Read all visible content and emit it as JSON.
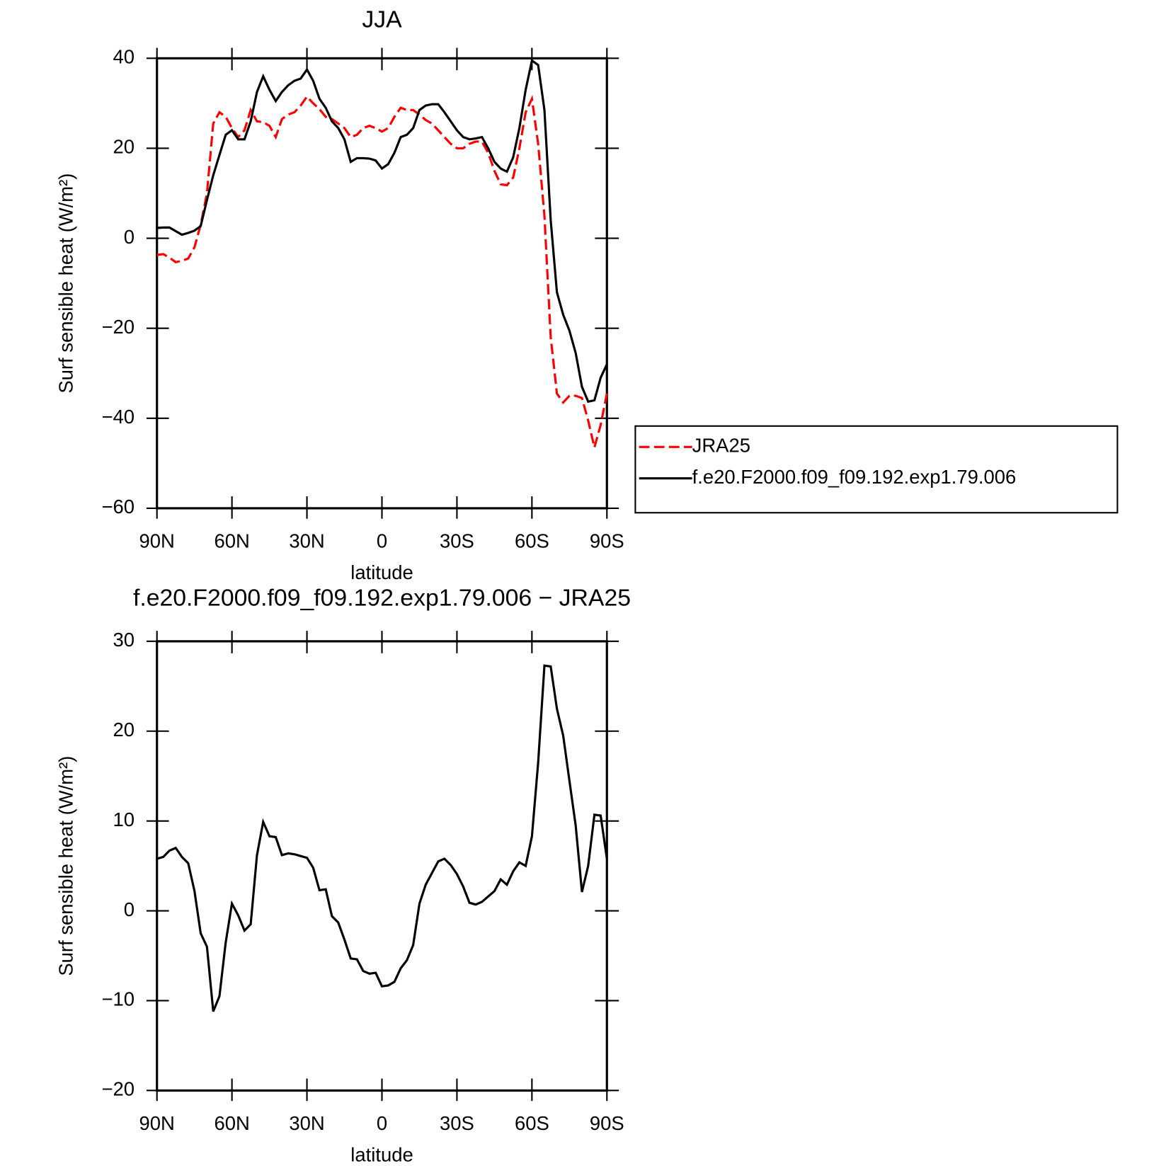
{
  "chart_data": [
    {
      "type": "line",
      "title": "JJA",
      "xlabel": "latitude",
      "ylabel": "Surf sensible heat (W/m²)",
      "x": [
        90,
        87.5,
        85,
        82.5,
        80,
        77.5,
        75,
        72.5,
        70,
        67.5,
        65,
        62.5,
        60,
        57.5,
        55,
        52.5,
        50,
        47.5,
        45,
        42.5,
        40,
        37.5,
        35,
        32.5,
        30,
        27.5,
        25,
        22.5,
        20,
        17.5,
        15,
        12.5,
        10,
        7.5,
        5,
        2.5,
        0,
        -2.5,
        -5,
        -7.5,
        -10,
        -12.5,
        -15,
        -17.5,
        -20,
        -22.5,
        -25,
        -27.5,
        -30,
        -32.5,
        -35,
        -37.5,
        -40,
        -42.5,
        -45,
        -47.5,
        -50,
        -52.5,
        -55,
        -57.5,
        -60,
        -62.5,
        -65,
        -67.5,
        -70,
        -72.5,
        -75,
        -77.5,
        -80,
        -82.5,
        -85,
        -87.5,
        -90
      ],
      "series": [
        {
          "name": "JRA25",
          "color": "#ff0000",
          "line_style": "dashed",
          "values": [
            -3.7,
            -3.5,
            -4.3,
            -5.3,
            -5,
            -4.5,
            -2,
            3,
            10,
            25.5,
            28,
            27,
            24.5,
            22.5,
            24,
            28.5,
            26,
            25.8,
            25,
            22.5,
            26.5,
            27.5,
            28,
            29.5,
            31.5,
            30,
            28.7,
            27,
            26.5,
            25.5,
            24.5,
            22.5,
            23,
            24.5,
            25,
            24.5,
            23.7,
            24.5,
            27,
            29,
            28.5,
            28.5,
            27.5,
            26.3,
            25.5,
            24,
            22.5,
            21,
            20,
            20,
            21,
            21.5,
            21.5,
            19,
            15,
            12,
            11.8,
            13.5,
            20,
            28,
            31,
            21,
            5,
            -22,
            -34.5,
            -36.5,
            -35,
            -35,
            -35.5,
            -40.5,
            -46.5,
            -41.5,
            -34.5
          ]
        },
        {
          "name": "f.e20.F2000.f09_f09.192.exp1.79.006",
          "color": "#000000",
          "line_style": "solid",
          "values": [
            2.3,
            2.4,
            2.4,
            1.6,
            0.8,
            1.2,
            1.7,
            2.7,
            8.5,
            14,
            18.5,
            23,
            24,
            22,
            22,
            26,
            32.5,
            36,
            33,
            30.5,
            32.5,
            34,
            35,
            35.5,
            37.5,
            35,
            31,
            29,
            26,
            24.5,
            22,
            17,
            17.8,
            17.8,
            17.7,
            17.3,
            15.5,
            16.5,
            19,
            22.5,
            23,
            24.5,
            28.5,
            29.5,
            29.8,
            29.8,
            28,
            26,
            24,
            22.5,
            22,
            22.2,
            22.5,
            20,
            17,
            15.5,
            14.8,
            18,
            24.5,
            33,
            39.5,
            38.5,
            28.5,
            4,
            -12,
            -17,
            -20.5,
            -25.5,
            -33,
            -36.3,
            -36,
            -31,
            -28
          ]
        }
      ],
      "xlim": [
        90,
        -90
      ],
      "xticks": [
        {
          "value": 90,
          "label": "90N"
        },
        {
          "value": 60,
          "label": "60N"
        },
        {
          "value": 30,
          "label": "30N"
        },
        0,
        {
          "value": -30,
          "label": "30S"
        },
        {
          "value": -60,
          "label": "60S"
        },
        {
          "value": -90,
          "label": "90S"
        }
      ],
      "ylim": [
        -60,
        40
      ],
      "yticks": [
        {
          "value": -60,
          "label": "−60"
        },
        {
          "value": -40,
          "label": "−40"
        },
        {
          "value": -20,
          "label": "−20"
        },
        0,
        20,
        40
      ],
      "legend_position": "right"
    },
    {
      "type": "line",
      "title": "f.e20.F2000.f09_f09.192.exp1.79.006 − JRA25",
      "xlabel": "latitude",
      "ylabel": "Surf sensible heat (W/m²)",
      "x": [
        90,
        87.5,
        85,
        82.5,
        80,
        77.5,
        75,
        72.5,
        70,
        67.5,
        65,
        62.5,
        60,
        57.5,
        55,
        52.5,
        50,
        47.5,
        45,
        42.5,
        40,
        37.5,
        35,
        32.5,
        30,
        27.5,
        25,
        22.5,
        20,
        17.5,
        15,
        12.5,
        10,
        7.5,
        5,
        2.5,
        0,
        -2.5,
        -5,
        -7.5,
        -10,
        -12.5,
        -15,
        -17.5,
        -20,
        -22.5,
        -25,
        -27.5,
        -30,
        -32.5,
        -35,
        -37.5,
        -40,
        -42.5,
        -45,
        -47.5,
        -50,
        -52.5,
        -55,
        -57.5,
        -60,
        -62.5,
        -65,
        -67.5,
        -70,
        -72.5,
        -75,
        -77.5,
        -80,
        -82.5,
        -85,
        -87.5,
        -90
      ],
      "series": [
        {
          "color": "#000000",
          "line_style": "solid",
          "values": [
            5.8,
            6,
            6.7,
            7,
            6,
            5.3,
            2.2,
            -2.5,
            -4,
            -11.2,
            -9.5,
            -3.5,
            0.8,
            -0.5,
            -2.2,
            -1.5,
            6.2,
            9.9,
            8.3,
            8.2,
            6.2,
            6.4,
            6.3,
            6.1,
            5.9,
            4.8,
            2.3,
            2.4,
            -0.6,
            -1.3,
            -3.2,
            -5.3,
            -5.4,
            -6.7,
            -7,
            -6.9,
            -8.4,
            -8.3,
            -7.9,
            -6.4,
            -5.5,
            -3.8,
            0.8,
            2.9,
            4.2,
            5.5,
            5.8,
            5.1,
            4.1,
            2.7,
            0.9,
            0.7,
            1,
            1.6,
            2.2,
            3.5,
            2.9,
            4.4,
            5.4,
            5,
            8.3,
            16.5,
            27.3,
            27.2,
            22.5,
            19.5,
            14.5,
            9.5,
            2.1,
            5,
            10.7,
            10.6,
            5.8
          ]
        }
      ],
      "xlim": [
        90,
        -90
      ],
      "xticks": [
        {
          "value": 90,
          "label": "90N"
        },
        {
          "value": 60,
          "label": "60N"
        },
        {
          "value": 30,
          "label": "30N"
        },
        0,
        {
          "value": -30,
          "label": "30S"
        },
        {
          "value": -60,
          "label": "60S"
        },
        {
          "value": -90,
          "label": "90S"
        }
      ],
      "ylim": [
        -20,
        30
      ],
      "yticks": [
        {
          "value": -20,
          "label": "−20"
        },
        {
          "value": -10,
          "label": "−10"
        },
        0,
        10,
        20,
        30
      ]
    }
  ]
}
